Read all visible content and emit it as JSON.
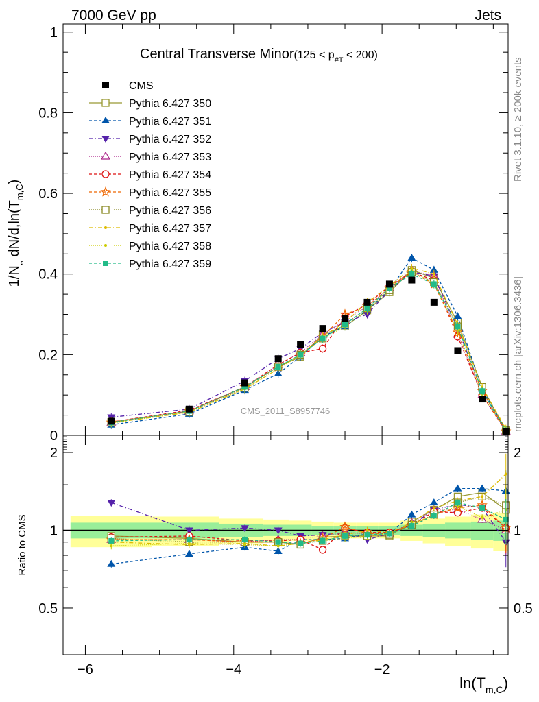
{
  "header": {
    "left": "7000 GeV pp",
    "right": "Jets",
    "side_top": "Rivet 3.1.10, ≥ 200k events",
    "side_bottom": "mcplots.cern.ch [arXiv:1306.3436]"
  },
  "chart_data": [
    {
      "type": "scatter",
      "panel": "main",
      "title_main": "Central Transverse Minor",
      "title_range_pre": "(125 < p",
      "title_range_sub": "#T",
      "title_range_post": " < 200)",
      "analysis_label": "CMS_2011_S8957746",
      "ylabel_main": "1/N",
      "ylabel_sub1": ",,",
      "ylabel_mid": " dN/d,ln(T",
      "ylabel_sub2": "m,C",
      "ylabel_end": ")",
      "ylim": [
        0,
        1.02
      ],
      "xlim": [
        -6.3,
        -0.3
      ],
      "yticks": [
        {
          "v": 0,
          "label": "0"
        },
        {
          "v": 0.2,
          "label": "0.2"
        },
        {
          "v": 0.4,
          "label": "0.4"
        },
        {
          "v": 0.6,
          "label": "0.6"
        },
        {
          "v": 0.8,
          "label": "0.8"
        },
        {
          "v": 1,
          "label": "1"
        }
      ],
      "legend_position": "top-left",
      "x": [
        -5.65,
        -4.6,
        -3.85,
        -3.4,
        -3.1,
        -2.8,
        -2.5,
        -2.2,
        -1.9,
        -1.6,
        -1.3,
        -0.98,
        -0.65,
        -0.33
      ],
      "data": {
        "name": "CMS",
        "values": [
          0.035,
          0.065,
          0.13,
          0.19,
          0.225,
          0.265,
          0.29,
          0.33,
          0.375,
          0.385,
          0.33,
          0.21,
          0.09,
          0.01
        ]
      },
      "series": [
        {
          "name": "Pythia 6.427 350",
          "color": "#999933",
          "dash": "",
          "marker": "square-open",
          "values": [
            0.033,
            0.06,
            0.12,
            0.17,
            0.195,
            0.25,
            0.27,
            0.31,
            0.355,
            0.41,
            0.39,
            0.28,
            0.12,
            0.012
          ]
        },
        {
          "name": "Pythia 6.427 351",
          "color": "#0055aa",
          "dash": "4,3",
          "marker": "triangle-up",
          "values": [
            0.026,
            0.053,
            0.112,
            0.153,
            0.195,
            0.245,
            0.27,
            0.31,
            0.36,
            0.44,
            0.41,
            0.295,
            0.115,
            0.012
          ]
        },
        {
          "name": "Pythia 6.427 352",
          "color": "#5522aa",
          "dash": "6,3,1,3",
          "marker": "triangle-down",
          "values": [
            0.045,
            0.065,
            0.135,
            0.19,
            0.215,
            0.255,
            0.28,
            0.3,
            0.36,
            0.405,
            0.395,
            0.265,
            0.11,
            0.009
          ]
        },
        {
          "name": "Pythia 6.427 353",
          "color": "#aa2288",
          "dash": "1,2",
          "marker": "triangle-open",
          "values": [
            0.032,
            0.06,
            0.12,
            0.175,
            0.205,
            0.25,
            0.285,
            0.32,
            0.365,
            0.41,
            0.395,
            0.25,
            0.1,
            0.01
          ]
        },
        {
          "name": "Pythia 6.427 354",
          "color": "#dd1111",
          "dash": "4,3",
          "marker": "circle-open",
          "values": [
            0.033,
            0.062,
            0.12,
            0.175,
            0.205,
            0.215,
            0.295,
            0.325,
            0.37,
            0.405,
            0.385,
            0.245,
            0.1,
            0.01
          ]
        },
        {
          "name": "Pythia 6.427 355",
          "color": "#ee6600",
          "dash": "4,3",
          "marker": "star-open",
          "values": [
            0.032,
            0.06,
            0.12,
            0.17,
            0.2,
            0.245,
            0.3,
            0.32,
            0.365,
            0.405,
            0.375,
            0.255,
            0.11,
            0.01
          ]
        },
        {
          "name": "Pythia 6.427 356",
          "color": "#888822",
          "dash": "1,2",
          "marker": "square-open",
          "values": [
            0.032,
            0.058,
            0.118,
            0.17,
            0.2,
            0.24,
            0.275,
            0.315,
            0.36,
            0.405,
            0.38,
            0.27,
            0.12,
            0.012
          ]
        },
        {
          "name": "Pythia 6.427 357",
          "color": "#ddbb00",
          "dash": "6,3,1,3",
          "marker": "dot",
          "values": [
            0.031,
            0.057,
            0.115,
            0.165,
            0.2,
            0.245,
            0.28,
            0.33,
            0.37,
            0.415,
            0.4,
            0.275,
            0.12,
            0.016
          ]
        },
        {
          "name": "Pythia 6.427 358",
          "color": "#cccc00",
          "dash": "1,2",
          "marker": "dot",
          "values": [
            0.03,
            0.058,
            0.115,
            0.165,
            0.2,
            0.24,
            0.27,
            0.31,
            0.365,
            0.41,
            0.375,
            0.26,
            0.1,
            0.012
          ]
        },
        {
          "name": "Pythia 6.427 359",
          "color": "#22bb88",
          "dash": "4,3",
          "marker": "square-filled",
          "values": [
            0.032,
            0.06,
            0.12,
            0.17,
            0.2,
            0.24,
            0.275,
            0.315,
            0.365,
            0.4,
            0.375,
            0.27,
            0.11,
            0.011
          ]
        }
      ]
    },
    {
      "type": "scatter",
      "panel": "ratio",
      "ylabel": "Ratio to CMS",
      "xlabel_main": "ln(T",
      "xlabel_sub": "m,C",
      "xlabel_end": ")",
      "ylim": [
        0.33,
        2.33
      ],
      "xlim": [
        -6.3,
        -0.3
      ],
      "yticks": [
        {
          "v": 0.5,
          "label": "0.5"
        },
        {
          "v": 1,
          "label": "1"
        },
        {
          "v": 2,
          "label": "2"
        }
      ],
      "xticks": [
        {
          "v": -6,
          "label": "−6"
        },
        {
          "v": -4,
          "label": "−4"
        },
        {
          "v": -2,
          "label": "−2"
        }
      ],
      "band_edges": [
        -6.2,
        -5.1,
        -4.2,
        -3.6,
        -3.25,
        -2.95,
        -2.65,
        -2.35,
        -2.05,
        -1.75,
        -1.45,
        -1.15,
        -0.8,
        -0.5,
        -0.3
      ],
      "band_inner": [
        0.07,
        0.07,
        0.06,
        0.05,
        0.05,
        0.04,
        0.04,
        0.04,
        0.04,
        0.05,
        0.06,
        0.07,
        0.08,
        0.09
      ],
      "band_outer": [
        0.14,
        0.13,
        0.11,
        0.1,
        0.09,
        0.08,
        0.07,
        0.07,
        0.07,
        0.09,
        0.11,
        0.13,
        0.15,
        0.17
      ],
      "series": [
        {
          "name": "Pythia 6.427 350",
          "values": [
            0.95,
            0.93,
            0.9,
            0.9,
            0.88,
            0.94,
            0.95,
            0.95,
            0.95,
            1.08,
            1.2,
            1.35,
            1.4,
            1.2
          ]
        },
        {
          "name": "Pythia 6.427 351",
          "values": [
            0.74,
            0.81,
            0.86,
            0.83,
            0.92,
            0.92,
            0.93,
            0.97,
            0.97,
            1.15,
            1.28,
            1.45,
            1.45,
            1.42
          ]
        },
        {
          "name": "Pythia 6.427 352",
          "values": [
            1.28,
            1.0,
            1.02,
            1.0,
            0.95,
            0.96,
            0.98,
            0.92,
            0.97,
            1.05,
            1.2,
            1.26,
            1.22,
            0.9
          ]
        },
        {
          "name": "Pythia 6.427 353",
          "values": [
            0.92,
            0.92,
            0.9,
            0.92,
            0.92,
            0.95,
            0.98,
            0.97,
            0.97,
            1.07,
            1.2,
            1.2,
            1.1,
            1.0
          ]
        },
        {
          "name": "Pythia 6.427 354",
          "values": [
            0.94,
            0.95,
            0.91,
            0.91,
            0.92,
            0.84,
            1.02,
            0.98,
            0.98,
            1.05,
            1.18,
            1.17,
            1.22,
            1.02
          ]
        },
        {
          "name": "Pythia 6.427 355",
          "values": [
            0.92,
            0.92,
            0.9,
            0.9,
            0.89,
            0.93,
            1.03,
            0.97,
            0.97,
            1.05,
            1.15,
            1.22,
            1.25,
            1.02
          ]
        },
        {
          "name": "Pythia 6.427 356",
          "values": [
            0.93,
            0.9,
            0.9,
            0.9,
            0.88,
            0.91,
            0.95,
            0.95,
            0.96,
            1.05,
            1.15,
            1.28,
            1.35,
            1.25
          ]
        },
        {
          "name": "Pythia 6.427 357",
          "values": [
            0.9,
            0.88,
            0.89,
            0.87,
            0.89,
            0.92,
            0.96,
            1.0,
            0.98,
            1.07,
            1.22,
            1.3,
            1.35,
            1.65
          ]
        },
        {
          "name": "Pythia 6.427 358",
          "values": [
            0.87,
            0.89,
            0.88,
            0.87,
            0.89,
            0.91,
            0.93,
            0.95,
            0.97,
            1.06,
            1.14,
            1.24,
            1.12,
            1.2
          ]
        },
        {
          "name": "Pythia 6.427 359",
          "values": [
            0.91,
            0.92,
            0.92,
            0.9,
            0.89,
            0.91,
            0.95,
            0.96,
            0.97,
            1.04,
            1.14,
            1.28,
            1.22,
            1.1
          ]
        }
      ]
    }
  ]
}
